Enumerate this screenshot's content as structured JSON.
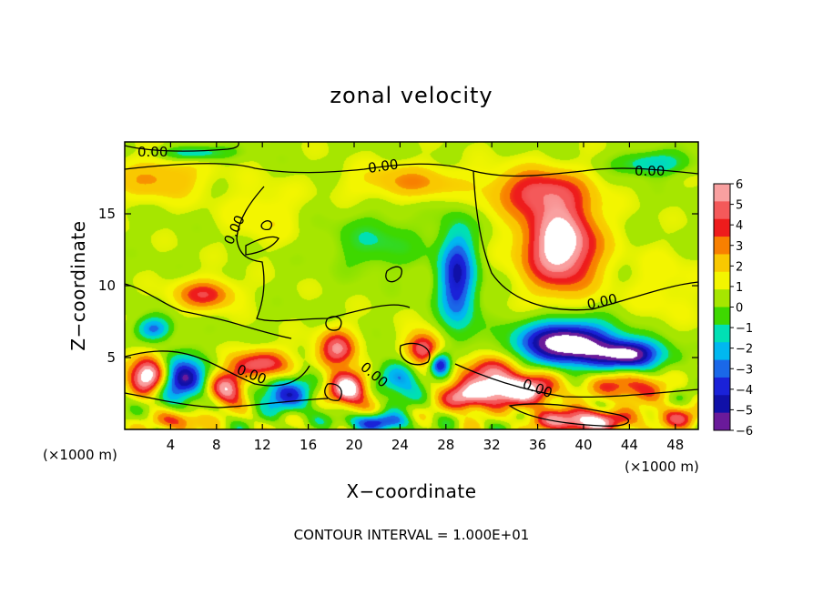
{
  "chart_data": {
    "type": "heatmap",
    "title": "zonal velocity",
    "xlabel": "X−coordinate",
    "ylabel": "Z−coordinate",
    "x_units": "(×1000 m)",
    "y_units": "(×1000 m)",
    "xlim": [
      0,
      50
    ],
    "ylim": [
      0,
      20
    ],
    "x_ticks": [
      4,
      8,
      12,
      16,
      20,
      24,
      28,
      32,
      36,
      40,
      44,
      48
    ],
    "x_tick_labels": [
      "4",
      "8",
      "12",
      "16",
      "20",
      "24",
      "28",
      "32",
      "36",
      "40",
      "44",
      "48"
    ],
    "y_ticks": [
      5,
      10,
      15
    ],
    "y_tick_labels": [
      "5",
      "10",
      "15"
    ],
    "colorbar": {
      "range": [
        -6,
        6
      ],
      "tick_labels": [
        "6",
        "5",
        "4",
        "3",
        "2",
        "1",
        "0",
        "−1",
        "−2",
        "−3",
        "−4",
        "−5",
        "−6"
      ],
      "colors": [
        "#f9a0a0",
        "#f4595a",
        "#ee1c1c",
        "#f88000",
        "#f9c800",
        "#f3f500",
        "#a6e600",
        "#3ed800",
        "#00e0b4",
        "#00b8f0",
        "#1a68e8",
        "#1a22d8",
        "#1010a8",
        "#6a1a9a"
      ]
    },
    "contour_labels": [
      "0.00",
      "0.00",
      "0.00",
      "0.00",
      "0.00",
      "0.00",
      "0.00",
      "0.00"
    ],
    "footer": "CONTOUR INTERVAL = 1.000E+01",
    "features": [
      {
        "x": 38,
        "z": 12.8,
        "u": 6.5,
        "sx": 3.2,
        "sz": 3.0
      },
      {
        "x": 36,
        "z": 16.5,
        "u": 3.5,
        "sx": 4.0,
        "sz": 1.6
      },
      {
        "x": 29,
        "z": 10.5,
        "u": -5.0,
        "sx": 1.6,
        "sz": 3.5
      },
      {
        "x": 38.5,
        "z": 6.0,
        "u": -8.0,
        "sx": 4.0,
        "sz": 1.5
      },
      {
        "x": 44,
        "z": 5.2,
        "u": -6.5,
        "sx": 3.0,
        "sz": 1.0
      },
      {
        "x": 7,
        "z": 9.4,
        "u": 3.5,
        "sx": 2.5,
        "sz": 1.0
      },
      {
        "x": 3,
        "z": 17.5,
        "u": 2.0,
        "sx": 4.0,
        "sz": 1.5
      },
      {
        "x": 25,
        "z": 17.2,
        "u": 2.0,
        "sx": 5.0,
        "sz": 1.2
      },
      {
        "x": 2,
        "z": 3.8,
        "u": 6.5,
        "sx": 1.6,
        "sz": 1.3
      },
      {
        "x": 5,
        "z": 3.5,
        "u": -5.5,
        "sx": 2.0,
        "sz": 1.6
      },
      {
        "x": 9,
        "z": 2.8,
        "u": 5.5,
        "sx": 1.5,
        "sz": 1.1
      },
      {
        "x": 12,
        "z": 4.5,
        "u": 4.5,
        "sx": 2.5,
        "sz": 1.0
      },
      {
        "x": 14,
        "z": 2.5,
        "u": -4.0,
        "sx": 2.5,
        "sz": 1.3
      },
      {
        "x": 18.5,
        "z": 5.6,
        "u": 4.5,
        "sx": 1.6,
        "sz": 1.3
      },
      {
        "x": 19.5,
        "z": 2.8,
        "u": 6.5,
        "sx": 1.6,
        "sz": 1.2
      },
      {
        "x": 24,
        "z": 3.5,
        "u": -3.0,
        "sx": 2.0,
        "sz": 1.5
      },
      {
        "x": 26,
        "z": 5.5,
        "u": 5.0,
        "sx": 1.5,
        "sz": 1.2
      },
      {
        "x": 27.5,
        "z": 4.5,
        "u": -6.0,
        "sx": 0.9,
        "sz": 0.8
      },
      {
        "x": 29.5,
        "z": 2.2,
        "u": 4.5,
        "sx": 2.0,
        "sz": 1.0
      },
      {
        "x": 34,
        "z": 2.8,
        "u": 7.0,
        "sx": 3.5,
        "sz": 1.1
      },
      {
        "x": 31.5,
        "z": 4.2,
        "u": 3.5,
        "sx": 2.5,
        "sz": 1.0
      },
      {
        "x": 44,
        "z": 3.0,
        "u": 3.5,
        "sx": 3.0,
        "sz": 1.0
      },
      {
        "x": 40,
        "z": 0.6,
        "u": 6.0,
        "sx": 4.0,
        "sz": 0.8
      },
      {
        "x": 5,
        "z": 0.6,
        "u": 3.5,
        "sx": 2.0,
        "sz": 0.7
      },
      {
        "x": 22,
        "z": 0.5,
        "u": -4.0,
        "sx": 3.0,
        "sz": 0.6
      },
      {
        "x": 48,
        "z": 0.8,
        "u": 3.0,
        "sx": 2.0,
        "sz": 0.8
      },
      {
        "x": 2.5,
        "z": 7.0,
        "u": -3.5,
        "sx": 1.5,
        "sz": 0.8
      },
      {
        "x": 22,
        "z": 13.0,
        "u": -1.5,
        "sx": 4.0,
        "sz": 2.0
      },
      {
        "x": 12,
        "z": 15.0,
        "u": 1.0,
        "sx": 3.0,
        "sz": 2.0
      },
      {
        "x": 46,
        "z": 18.5,
        "u": -2.5,
        "sx": 3.0,
        "sz": 0.8
      },
      {
        "x": 6,
        "z": 19.2,
        "u": -2.5,
        "sx": 3.0,
        "sz": 0.5
      },
      {
        "x": 47,
        "z": 10.0,
        "u": 0.8,
        "sx": 3.0,
        "sz": 2.5
      }
    ]
  }
}
